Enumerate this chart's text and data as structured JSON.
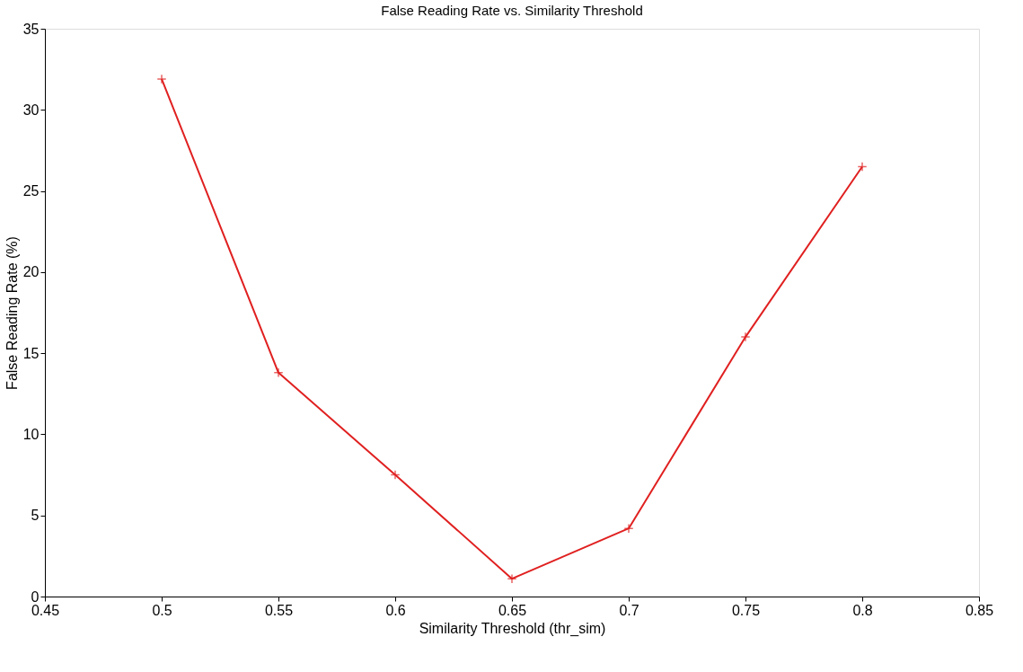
{
  "chart_data": {
    "type": "line",
    "title": "False Reading Rate vs. Similarity Threshold",
    "xlabel": "Similarity Threshold (thr_sim)",
    "ylabel": "False Reading Rate (%)",
    "x": [
      0.5,
      0.55,
      0.6,
      0.65,
      0.7,
      0.75,
      0.8
    ],
    "series": [
      {
        "color": "#e02020",
        "values": [
          31.9,
          13.8,
          7.5,
          1.1,
          4.2,
          16.0,
          26.5
        ]
      }
    ],
    "xlim": [
      0.45,
      0.85
    ],
    "xticks": [
      0.45,
      0.5,
      0.55,
      0.6,
      0.65,
      0.7,
      0.75,
      0.8,
      0.85
    ],
    "ylim": [
      0,
      35
    ],
    "yticks": [
      0,
      5,
      10,
      15,
      20,
      25,
      30,
      35
    ],
    "grid": false,
    "marker": "cross",
    "line_style": "solid"
  }
}
